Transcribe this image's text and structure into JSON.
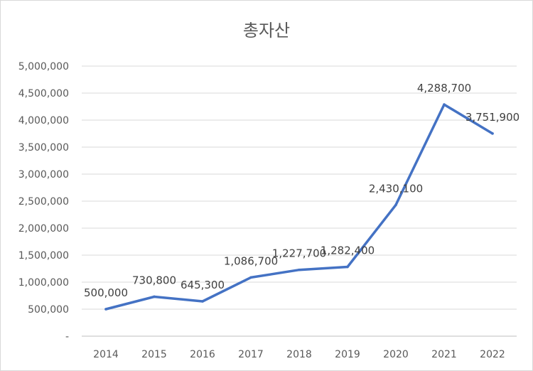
{
  "chart_data": {
    "type": "line",
    "title": "총자산",
    "xlabel": "",
    "ylabel": "",
    "categories": [
      "2014",
      "2015",
      "2016",
      "2017",
      "2018",
      "2019",
      "2020",
      "2021",
      "2022"
    ],
    "series": [
      {
        "values": [
          500000,
          730800,
          645300,
          1086700,
          1227700,
          1282400,
          2430100,
          4288700,
          3751900
        ],
        "labels": [
          "500,000",
          "730,800",
          "645,300",
          "1,086,700",
          "1,227,700",
          "1,282,400",
          "2,430,100",
          "4,288,700",
          "3,751,900"
        ]
      }
    ],
    "ylim": [
      0,
      5000000
    ],
    "yticks": [
      0,
      500000,
      1000000,
      1500000,
      2000000,
      2500000,
      3000000,
      3500000,
      4000000,
      4500000,
      5000000
    ],
    "ytick_labels": [
      "-",
      "500,000",
      "1,000,000",
      "1,500,000",
      "2,000,000",
      "2,500,000",
      "3,000,000",
      "3,500,000",
      "4,000,000",
      "4,500,000",
      "5,000,000"
    ],
    "grid": true,
    "legend": "none",
    "line_color": "#4472C4"
  }
}
